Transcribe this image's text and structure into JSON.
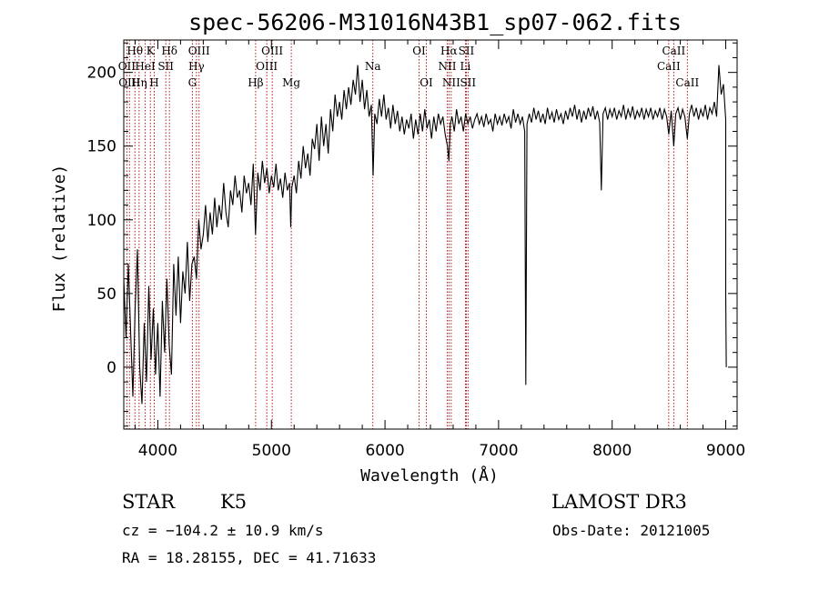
{
  "chart_data": {
    "type": "line",
    "title": "spec-56206-M31016N43B1_sp07-062.fits",
    "xlabel": "Wavelength (Å)",
    "ylabel": "Flux (relative)",
    "xlim": [
      3700,
      9100
    ],
    "ylim": [
      -42,
      222
    ],
    "xticks": [
      4000,
      5000,
      6000,
      7000,
      8000,
      9000
    ],
    "yticks": [
      0,
      50,
      100,
      150,
      200
    ],
    "series": [
      {
        "name": "flux",
        "points": [
          [
            3700,
            60
          ],
          [
            3720,
            20
          ],
          [
            3740,
            70
          ],
          [
            3760,
            25
          ],
          [
            3780,
            -20
          ],
          [
            3800,
            40
          ],
          [
            3820,
            80
          ],
          [
            3840,
            0
          ],
          [
            3860,
            -25
          ],
          [
            3880,
            30
          ],
          [
            3900,
            -10
          ],
          [
            3920,
            55
          ],
          [
            3940,
            5
          ],
          [
            3960,
            40
          ],
          [
            3980,
            -5
          ],
          [
            4000,
            30
          ],
          [
            4020,
            -20
          ],
          [
            4040,
            45
          ],
          [
            4060,
            10
          ],
          [
            4080,
            60
          ],
          [
            4100,
            15
          ],
          [
            4120,
            -5
          ],
          [
            4140,
            70
          ],
          [
            4160,
            35
          ],
          [
            4180,
            75
          ],
          [
            4200,
            30
          ],
          [
            4220,
            65
          ],
          [
            4240,
            50
          ],
          [
            4260,
            85
          ],
          [
            4280,
            45
          ],
          [
            4300,
            70
          ],
          [
            4320,
            75
          ],
          [
            4340,
            60
          ],
          [
            4360,
            100
          ],
          [
            4380,
            80
          ],
          [
            4400,
            90
          ],
          [
            4420,
            110
          ],
          [
            4440,
            85
          ],
          [
            4460,
            105
          ],
          [
            4480,
            90
          ],
          [
            4500,
            115
          ],
          [
            4520,
            95
          ],
          [
            4540,
            110
          ],
          [
            4560,
            100
          ],
          [
            4580,
            125
          ],
          [
            4600,
            105
          ],
          [
            4620,
            95
          ],
          [
            4640,
            120
          ],
          [
            4660,
            110
          ],
          [
            4680,
            130
          ],
          [
            4700,
            115
          ],
          [
            4720,
            120
          ],
          [
            4740,
            105
          ],
          [
            4760,
            130
          ],
          [
            4780,
            118
          ],
          [
            4800,
            125
          ],
          [
            4820,
            110
          ],
          [
            4840,
            138
          ],
          [
            4860,
            90
          ],
          [
            4880,
            132
          ],
          [
            4900,
            120
          ],
          [
            4920,
            140
          ],
          [
            4940,
            125
          ],
          [
            4960,
            135
          ],
          [
            4980,
            118
          ],
          [
            5000,
            130
          ],
          [
            5020,
            122
          ],
          [
            5040,
            138
          ],
          [
            5060,
            120
          ],
          [
            5080,
            128
          ],
          [
            5100,
            115
          ],
          [
            5120,
            132
          ],
          [
            5140,
            120
          ],
          [
            5160,
            125
          ],
          [
            5170,
            95
          ],
          [
            5180,
            122
          ],
          [
            5200,
            130
          ],
          [
            5220,
            118
          ],
          [
            5240,
            140
          ],
          [
            5260,
            128
          ],
          [
            5280,
            150
          ],
          [
            5300,
            135
          ],
          [
            5320,
            145
          ],
          [
            5340,
            130
          ],
          [
            5360,
            155
          ],
          [
            5380,
            148
          ],
          [
            5400,
            165
          ],
          [
            5420,
            140
          ],
          [
            5440,
            170
          ],
          [
            5460,
            150
          ],
          [
            5480,
            165
          ],
          [
            5500,
            145
          ],
          [
            5520,
            175
          ],
          [
            5540,
            160
          ],
          [
            5560,
            185
          ],
          [
            5580,
            170
          ],
          [
            5600,
            180
          ],
          [
            5620,
            168
          ],
          [
            5640,
            188
          ],
          [
            5660,
            175
          ],
          [
            5680,
            190
          ],
          [
            5700,
            178
          ],
          [
            5720,
            195
          ],
          [
            5740,
            185
          ],
          [
            5760,
            205
          ],
          [
            5780,
            180
          ],
          [
            5800,
            195
          ],
          [
            5820,
            175
          ],
          [
            5840,
            188
          ],
          [
            5860,
            170
          ],
          [
            5880,
            178
          ],
          [
            5895,
            130
          ],
          [
            5910,
            172
          ],
          [
            5930,
            165
          ],
          [
            5950,
            182
          ],
          [
            5970,
            170
          ],
          [
            5990,
            185
          ],
          [
            6010,
            168
          ],
          [
            6030,
            176
          ],
          [
            6050,
            162
          ],
          [
            6070,
            178
          ],
          [
            6090,
            165
          ],
          [
            6110,
            174
          ],
          [
            6130,
            160
          ],
          [
            6150,
            170
          ],
          [
            6170,
            158
          ],
          [
            6190,
            168
          ],
          [
            6210,
            162
          ],
          [
            6230,
            172
          ],
          [
            6250,
            155
          ],
          [
            6270,
            168
          ],
          [
            6290,
            158
          ],
          [
            6310,
            172
          ],
          [
            6330,
            160
          ],
          [
            6350,
            175
          ],
          [
            6370,
            162
          ],
          [
            6390,
            168
          ],
          [
            6410,
            155
          ],
          [
            6430,
            170
          ],
          [
            6450,
            160
          ],
          [
            6470,
            172
          ],
          [
            6490,
            165
          ],
          [
            6510,
            170
          ],
          [
            6530,
            158
          ],
          [
            6550,
            150
          ],
          [
            6563,
            140
          ],
          [
            6575,
            165
          ],
          [
            6590,
            170
          ],
          [
            6610,
            160
          ],
          [
            6630,
            175
          ],
          [
            6650,
            165
          ],
          [
            6670,
            170
          ],
          [
            6690,
            160
          ],
          [
            6710,
            172
          ],
          [
            6730,
            165
          ],
          [
            6750,
            170
          ],
          [
            6770,
            162
          ],
          [
            6790,
            168
          ],
          [
            6810,
            172
          ],
          [
            6830,
            165
          ],
          [
            6850,
            170
          ],
          [
            6870,
            163
          ],
          [
            6890,
            172
          ],
          [
            6910,
            165
          ],
          [
            6930,
            168
          ],
          [
            6950,
            160
          ],
          [
            6970,
            172
          ],
          [
            6990,
            165
          ],
          [
            7010,
            170
          ],
          [
            7030,
            164
          ],
          [
            7050,
            172
          ],
          [
            7070,
            166
          ],
          [
            7090,
            170
          ],
          [
            7110,
            162
          ],
          [
            7130,
            175
          ],
          [
            7150,
            166
          ],
          [
            7170,
            172
          ],
          [
            7190,
            165
          ],
          [
            7210,
            170
          ],
          [
            7230,
            160
          ],
          [
            7240,
            -12
          ],
          [
            7250,
            165
          ],
          [
            7270,
            172
          ],
          [
            7290,
            166
          ],
          [
            7310,
            176
          ],
          [
            7330,
            168
          ],
          [
            7350,
            174
          ],
          [
            7370,
            166
          ],
          [
            7390,
            172
          ],
          [
            7410,
            165
          ],
          [
            7430,
            176
          ],
          [
            7450,
            168
          ],
          [
            7470,
            173
          ],
          [
            7490,
            166
          ],
          [
            7510,
            175
          ],
          [
            7530,
            168
          ],
          [
            7550,
            172
          ],
          [
            7570,
            165
          ],
          [
            7590,
            174
          ],
          [
            7610,
            168
          ],
          [
            7630,
            176
          ],
          [
            7650,
            170
          ],
          [
            7670,
            178
          ],
          [
            7690,
            168
          ],
          [
            7710,
            175
          ],
          [
            7730,
            166
          ],
          [
            7750,
            174
          ],
          [
            7770,
            168
          ],
          [
            7790,
            176
          ],
          [
            7810,
            170
          ],
          [
            7830,
            177
          ],
          [
            7850,
            168
          ],
          [
            7870,
            174
          ],
          [
            7890,
            166
          ],
          [
            7905,
            120
          ],
          [
            7920,
            172
          ],
          [
            7940,
            176
          ],
          [
            7960,
            168
          ],
          [
            7980,
            175
          ],
          [
            8000,
            170
          ],
          [
            8020,
            176
          ],
          [
            8040,
            168
          ],
          [
            8060,
            174
          ],
          [
            8080,
            170
          ],
          [
            8100,
            178
          ],
          [
            8120,
            168
          ],
          [
            8140,
            175
          ],
          [
            8160,
            170
          ],
          [
            8180,
            177
          ],
          [
            8200,
            168
          ],
          [
            8220,
            174
          ],
          [
            8240,
            170
          ],
          [
            8260,
            176
          ],
          [
            8280,
            168
          ],
          [
            8300,
            175
          ],
          [
            8320,
            170
          ],
          [
            8340,
            176
          ],
          [
            8360,
            168
          ],
          [
            8380,
            174
          ],
          [
            8400,
            170
          ],
          [
            8420,
            176
          ],
          [
            8440,
            168
          ],
          [
            8460,
            175
          ],
          [
            8480,
            170
          ],
          [
            8498,
            158
          ],
          [
            8520,
            174
          ],
          [
            8542,
            150
          ],
          [
            8560,
            172
          ],
          [
            8580,
            176
          ],
          [
            8600,
            168
          ],
          [
            8620,
            175
          ],
          [
            8640,
            170
          ],
          [
            8662,
            155
          ],
          [
            8680,
            172
          ],
          [
            8700,
            178
          ],
          [
            8720,
            170
          ],
          [
            8740,
            176
          ],
          [
            8760,
            168
          ],
          [
            8780,
            175
          ],
          [
            8800,
            170
          ],
          [
            8820,
            178
          ],
          [
            8840,
            168
          ],
          [
            8860,
            176
          ],
          [
            8880,
            172
          ],
          [
            8900,
            180
          ],
          [
            8920,
            170
          ],
          [
            8940,
            205
          ],
          [
            8960,
            185
          ],
          [
            8980,
            192
          ],
          [
            9000,
            168
          ],
          [
            9000,
            50
          ],
          [
            9005,
            0
          ]
        ]
      }
    ],
    "spectral_lines": [
      {
        "label": "Hθ",
        "wavelength": 3798,
        "row": 0
      },
      {
        "label": "OII",
        "wavelength": 3727,
        "row": 1
      },
      {
        "label": "OIII",
        "wavelength": 3750,
        "row": 2
      },
      {
        "label": "K",
        "wavelength": 3934,
        "row": 0
      },
      {
        "label": "HeI",
        "wavelength": 3889,
        "row": 1
      },
      {
        "label": "Hη",
        "wavelength": 3835,
        "row": 2
      },
      {
        "label": "Hδ",
        "wavelength": 4102,
        "row": 0
      },
      {
        "label": "SII",
        "wavelength": 4070,
        "row": 1
      },
      {
        "label": "H",
        "wavelength": 3968,
        "row": 2
      },
      {
        "label": "OIII",
        "wavelength": 4363,
        "row": 0
      },
      {
        "label": "Hγ",
        "wavelength": 4340,
        "row": 1
      },
      {
        "label": "G",
        "wavelength": 4304,
        "row": 2
      },
      {
        "label": "OIII",
        "wavelength": 5007,
        "row": 0
      },
      {
        "label": "OIII",
        "wavelength": 4959,
        "row": 1
      },
      {
        "label": "Hβ",
        "wavelength": 4861,
        "row": 2
      },
      {
        "label": "Mg",
        "wavelength": 5175,
        "row": 2
      },
      {
        "label": "Na",
        "wavelength": 5893,
        "row": 1
      },
      {
        "label": "OI",
        "wavelength": 6300,
        "row": 0
      },
      {
        "label": "OI",
        "wavelength": 6364,
        "row": 2
      },
      {
        "label": "Hα",
        "wavelength": 6563,
        "row": 0
      },
      {
        "label": "SII",
        "wavelength": 6716,
        "row": 0
      },
      {
        "label": "NII",
        "wavelength": 6548,
        "row": 1
      },
      {
        "label": "Li",
        "wavelength": 6708,
        "row": 1
      },
      {
        "label": "NII",
        "wavelength": 6583,
        "row": 2
      },
      {
        "label": "SII",
        "wavelength": 6731,
        "row": 2
      },
      {
        "label": "CaII",
        "wavelength": 8542,
        "row": 0
      },
      {
        "label": "CaII",
        "wavelength": 8498,
        "row": 1
      },
      {
        "label": "CaII",
        "wavelength": 8662,
        "row": 2
      }
    ]
  },
  "info": {
    "class": "STAR",
    "subclass": "K5",
    "survey": "LAMOST DR3",
    "redshift": "cz = −104.2 ± 10.9 km/s",
    "obs_date": "Obs-Date: 20121005",
    "coords": "RA =  18.28155, DEC =  41.71633"
  }
}
